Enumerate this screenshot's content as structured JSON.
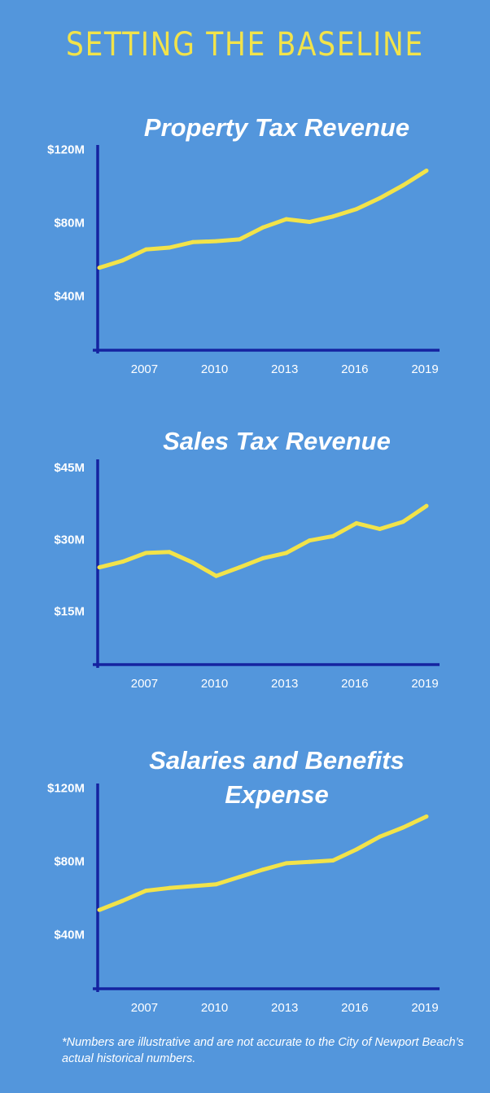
{
  "headline": "SETTING THE BASELINE",
  "colors": {
    "background": "#5396dc",
    "axis": "#1523a0",
    "line": "#f2e34a",
    "title": "#ffffff"
  },
  "chart_data": [
    {
      "type": "line",
      "title": "Property Tax Revenue",
      "x": [
        2005,
        2006,
        2007,
        2008,
        2009,
        2010,
        2011,
        2012,
        2013,
        2014,
        2015,
        2016,
        2017,
        2018,
        2019
      ],
      "values": [
        55,
        59,
        65,
        66,
        69,
        69.5,
        70.5,
        77,
        81.5,
        80,
        83,
        87,
        93,
        100,
        108
      ],
      "xticks": [
        "2007",
        "2010",
        "2013",
        "2016",
        "2019"
      ],
      "yticks": [
        "$40M",
        "$80M",
        "$120M"
      ],
      "ytick_values": [
        40,
        80,
        120
      ],
      "ylim": [
        10,
        122
      ],
      "xlim": [
        2005,
        2019
      ]
    },
    {
      "type": "line",
      "title": "Sales Tax Revenue",
      "x": [
        2005,
        2006,
        2007,
        2008,
        2009,
        2010,
        2011,
        2012,
        2013,
        2014,
        2015,
        2016,
        2017,
        2018,
        2019
      ],
      "values": [
        24,
        25.2,
        27,
        27.2,
        25,
        22.2,
        24,
        25.9,
        27,
        29.6,
        30.5,
        33.2,
        32,
        33.5,
        36.8
      ],
      "xticks": [
        "2007",
        "2010",
        "2013",
        "2016",
        "2019"
      ],
      "yticks": [
        "$15M",
        "$30M",
        "$45M"
      ],
      "ytick_values": [
        15,
        30,
        45
      ],
      "ylim": [
        3.75,
        46.5
      ],
      "xlim": [
        2005,
        2019
      ]
    },
    {
      "type": "line",
      "title": "Salaries and Benefits Expense",
      "x": [
        2005,
        2006,
        2007,
        2008,
        2009,
        2010,
        2011,
        2012,
        2013,
        2014,
        2015,
        2016,
        2017,
        2018,
        2019
      ],
      "values": [
        53,
        58,
        63.5,
        65,
        66,
        67,
        71,
        75,
        78.5,
        79.2,
        80,
        86,
        93,
        98,
        104
      ],
      "xticks": [
        "2007",
        "2010",
        "2013",
        "2016",
        "2019"
      ],
      "yticks": [
        "$40M",
        "$80M",
        "$120M"
      ],
      "ytick_values": [
        40,
        80,
        120
      ],
      "ylim": [
        10,
        122
      ],
      "xlim": [
        2005,
        2019
      ]
    }
  ],
  "footnote": "*Numbers are illustrative and are not accurate to the City of Newport Beach’s actual historical numbers."
}
